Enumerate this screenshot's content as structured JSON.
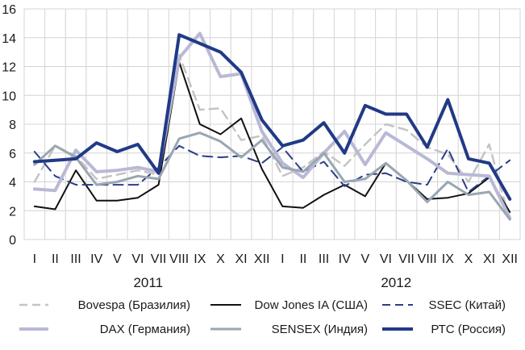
{
  "chart_data": {
    "type": "line",
    "title": "",
    "xlabel": "",
    "ylabel": "",
    "ylim": [
      0,
      16
    ],
    "yticks": [
      0,
      2,
      4,
      6,
      8,
      10,
      12,
      14,
      16
    ],
    "grid": true,
    "legend_position": "bottom",
    "categories": [
      "I",
      "II",
      "III",
      "IV",
      "V",
      "VI",
      "VII",
      "VIII",
      "IX",
      "X",
      "XI",
      "XII",
      "I",
      "II",
      "III",
      "IV",
      "V",
      "VI",
      "VII",
      "VIII",
      "IX",
      "X",
      "XI",
      "XII"
    ],
    "year_labels": [
      {
        "label": "2011",
        "start": 0,
        "end": 11
      },
      {
        "label": "2012",
        "start": 12,
        "end": 23
      }
    ],
    "series": [
      {
        "name": "Bovespa (Бразилия)",
        "style": "dashed",
        "color": "#c4c4c4",
        "width": 2.5,
        "values": [
          4.0,
          6.5,
          5.8,
          4.2,
          4.5,
          4.8,
          4.5,
          12.8,
          9.0,
          9.1,
          6.9,
          7.2,
          4.4,
          5.0,
          6.1,
          5.1,
          6.6,
          8.0,
          7.6,
          6.4,
          5.9,
          4.0,
          6.6,
          1.3
        ]
      },
      {
        "name": "Dow Jones IA (США)",
        "style": "solid",
        "color": "#111111",
        "width": 2,
        "values": [
          2.3,
          2.1,
          4.8,
          2.7,
          2.7,
          2.9,
          3.8,
          12.3,
          8.0,
          7.3,
          8.4,
          4.9,
          2.3,
          2.2,
          3.1,
          3.8,
          3.0,
          5.3,
          4.1,
          2.8,
          2.9,
          3.2,
          4.3,
          1.9
        ]
      },
      {
        "name": "SSEC (Китай)",
        "style": "dashed",
        "color": "#2b3f86",
        "width": 2,
        "values": [
          6.1,
          4.4,
          3.8,
          3.8,
          3.8,
          3.8,
          5.0,
          6.5,
          5.8,
          5.7,
          5.8,
          5.3,
          6.4,
          4.7,
          5.4,
          3.7,
          4.5,
          4.6,
          4.0,
          3.8,
          6.3,
          3.3,
          4.4,
          5.5
        ]
      },
      {
        "name": "DAX (Германия)",
        "style": "solid",
        "color": "#b9b9d6",
        "width": 4,
        "values": [
          3.5,
          3.4,
          6.2,
          4.7,
          4.8,
          5.0,
          4.7,
          12.6,
          14.3,
          11.3,
          11.5,
          7.5,
          5.3,
          4.3,
          6.0,
          7.5,
          5.2,
          7.4,
          6.5,
          5.6,
          4.6,
          4.5,
          4.4,
          1.5
        ]
      },
      {
        "name": "SENSEX (Индия)",
        "style": "solid",
        "color": "#9aa6b2",
        "width": 3,
        "values": [
          5.2,
          6.5,
          5.7,
          3.8,
          4.0,
          4.4,
          4.2,
          7.0,
          7.4,
          6.8,
          5.7,
          6.9,
          5.0,
          4.7,
          6.0,
          4.0,
          4.2,
          5.3,
          4.1,
          2.6,
          4.0,
          3.1,
          3.3,
          1.4
        ]
      },
      {
        "name": "РТС (Россия)",
        "style": "solid",
        "color": "#213a86",
        "width": 4,
        "values": [
          5.4,
          5.5,
          5.6,
          6.7,
          6.1,
          6.6,
          4.6,
          14.2,
          13.6,
          13.0,
          11.6,
          8.3,
          6.5,
          6.9,
          8.1,
          6.0,
          9.3,
          8.7,
          8.7,
          6.4,
          9.7,
          5.6,
          5.3,
          2.8
        ]
      }
    ]
  }
}
